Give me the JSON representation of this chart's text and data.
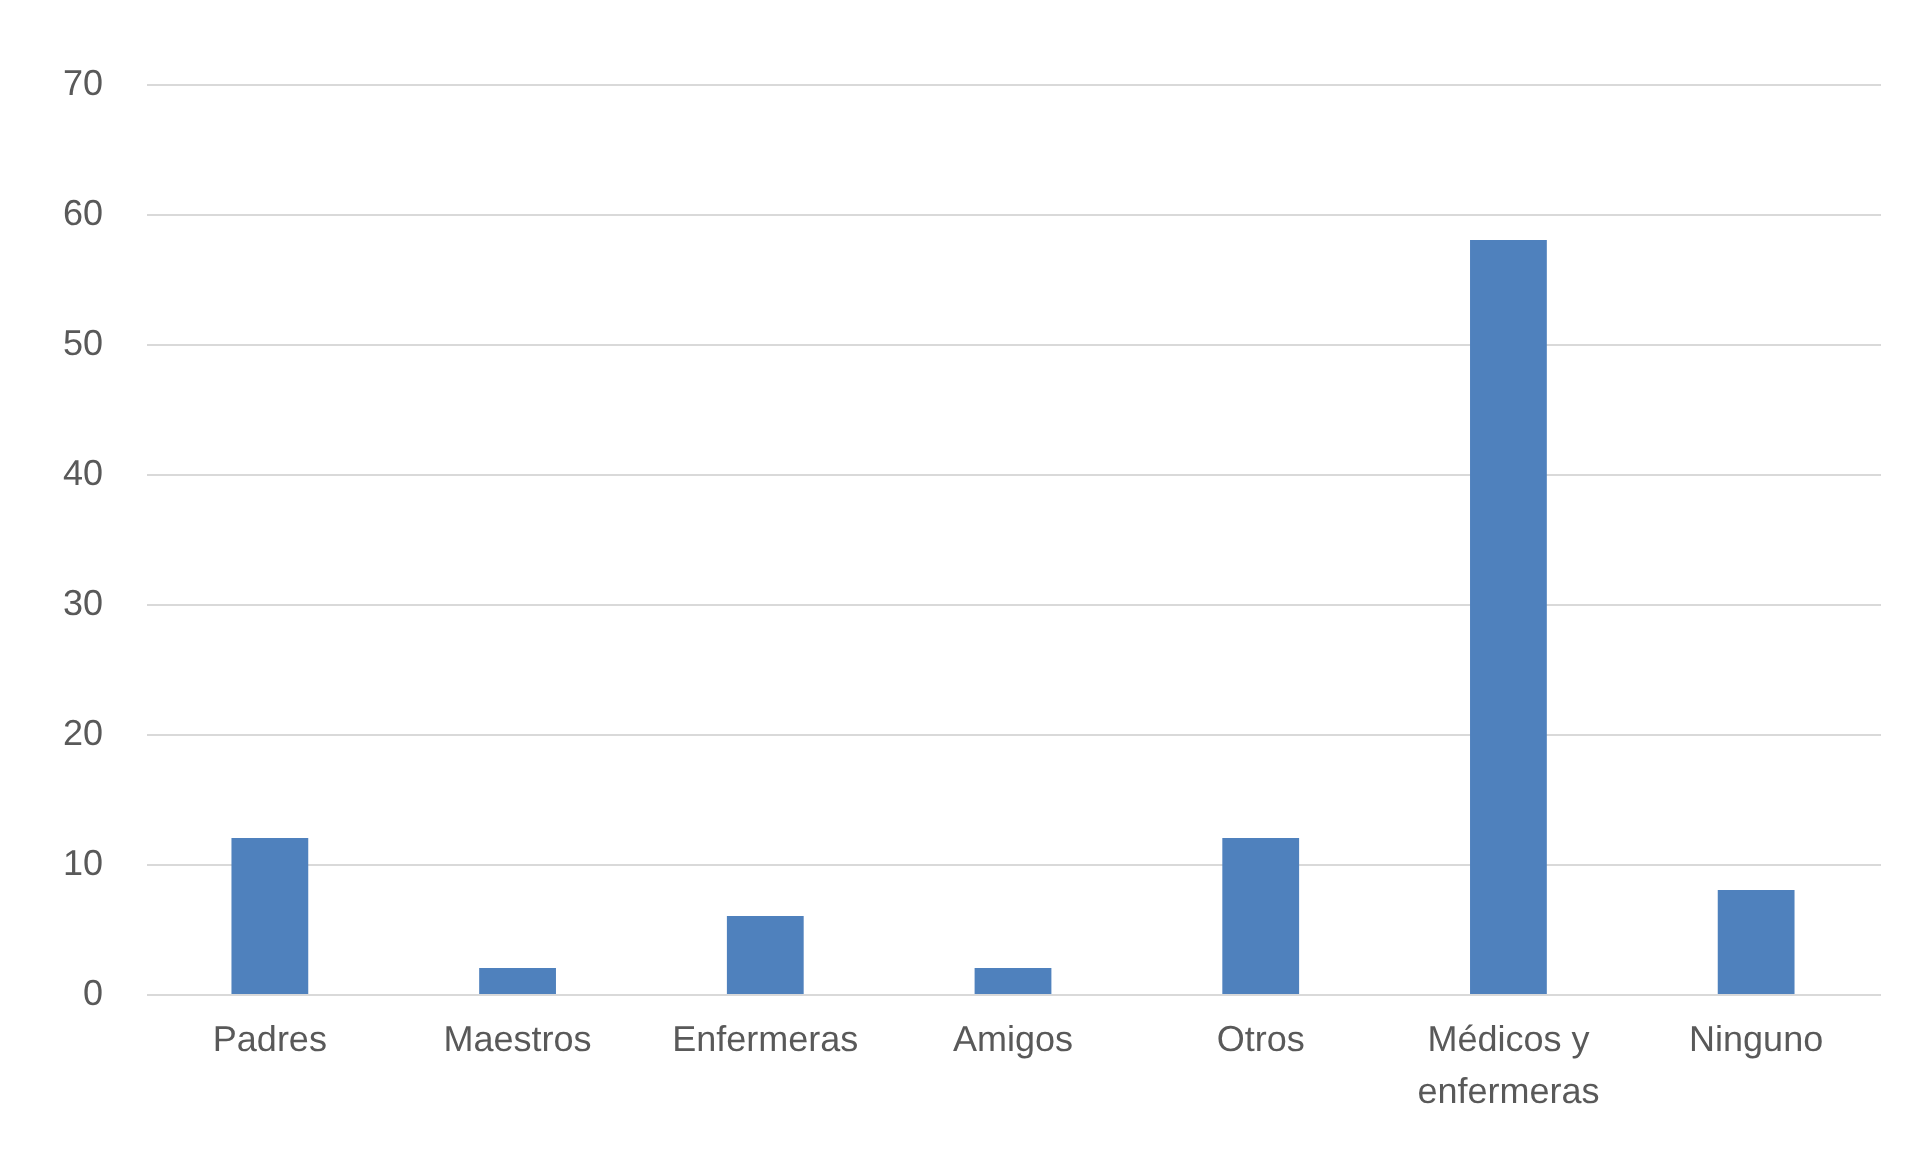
{
  "chart_data": {
    "type": "bar",
    "categories": [
      "Padres",
      "Maestros",
      "Enfermeras",
      "Amigos",
      "Otros",
      "Médicos y enfermeras",
      "Ninguno"
    ],
    "values": [
      12,
      2,
      6,
      2,
      12,
      58,
      8
    ],
    "color": "#4f81bd",
    "ylim": [
      0,
      70
    ],
    "yticks": [
      0,
      10,
      20,
      30,
      40,
      50,
      60,
      70
    ],
    "grid": true
  }
}
